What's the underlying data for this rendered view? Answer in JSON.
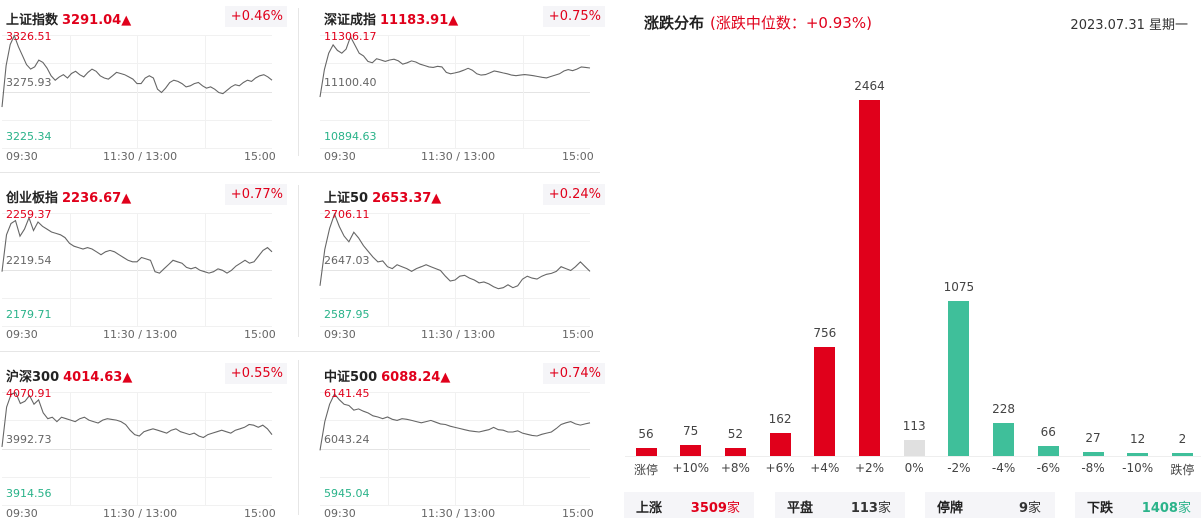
{
  "x_labels": {
    "start": "09:30",
    "mid": "11:30 / 13:00",
    "end": "15:00"
  },
  "indices": [
    {
      "name": "上证指数",
      "value": "3291.04▲",
      "change": "+0.46%",
      "high": "3326.51",
      "mid": "3275.93",
      "low": "3225.34",
      "series": [
        3262,
        3299,
        3318,
        3326,
        3316,
        3308,
        3300,
        3296,
        3298,
        3304,
        3302,
        3297,
        3290,
        3286,
        3289,
        3291,
        3288,
        3292,
        3294,
        3291,
        3289,
        3293,
        3296,
        3294,
        3290,
        3288,
        3287,
        3290,
        3293,
        3292,
        3291,
        3289,
        3287,
        3283,
        3283,
        3288,
        3290,
        3288,
        3278,
        3275,
        3279,
        3284,
        3286,
        3285,
        3283,
        3280,
        3281,
        3283,
        3284,
        3281,
        3279,
        3280,
        3278,
        3275,
        3274,
        3277,
        3280,
        3282,
        3281,
        3284,
        3286,
        3285,
        3288,
        3290,
        3291,
        3289,
        3286
      ]
    },
    {
      "name": "深证成指",
      "value": "11183.91▲",
      "change": "+0.75%",
      "high": "11306.17",
      "mid": "11100.40",
      "low": "10894.63",
      "series": [
        11080,
        11180,
        11240,
        11270,
        11250,
        11240,
        11255,
        11300,
        11270,
        11240,
        11230,
        11210,
        11205,
        11220,
        11215,
        11210,
        11215,
        11218,
        11212,
        11200,
        11205,
        11212,
        11208,
        11200,
        11195,
        11190,
        11188,
        11192,
        11190,
        11170,
        11165,
        11168,
        11172,
        11178,
        11185,
        11178,
        11165,
        11160,
        11162,
        11168,
        11175,
        11172,
        11168,
        11165,
        11160,
        11158,
        11160,
        11162,
        11160,
        11158,
        11155,
        11152,
        11150,
        11155,
        11160,
        11165,
        11175,
        11180,
        11176,
        11182,
        11190,
        11188,
        11186
      ]
    },
    {
      "name": "创业板指",
      "value": "2236.67▲",
      "change": "+0.77%",
      "high": "2259.37",
      "mid": "2219.54",
      "low": "2179.71",
      "series": [
        2218,
        2244,
        2252,
        2254,
        2243,
        2248,
        2256,
        2247,
        2253,
        2250,
        2248,
        2246,
        2245,
        2244,
        2242,
        2238,
        2236,
        2235,
        2234,
        2235,
        2234,
        2232,
        2230,
        2232,
        2233,
        2232,
        2230,
        2228,
        2226,
        2225,
        2225,
        2228,
        2227,
        2226,
        2218,
        2217,
        2220,
        2223,
        2226,
        2225,
        2224,
        2221,
        2220,
        2221,
        2219,
        2218,
        2217,
        2218,
        2220,
        2219,
        2217,
        2219,
        2222,
        2224,
        2226,
        2224,
        2225,
        2229,
        2233,
        2235,
        2232
      ]
    },
    {
      "name": "上证50",
      "value": "2653.37▲",
      "change": "+0.24%",
      "high": "2706.11",
      "mid": "2647.03",
      "low": "2587.95",
      "series": [
        2630,
        2668,
        2690,
        2705,
        2692,
        2682,
        2676,
        2686,
        2680,
        2672,
        2666,
        2660,
        2655,
        2656,
        2650,
        2648,
        2652,
        2650,
        2648,
        2645,
        2648,
        2650,
        2652,
        2650,
        2648,
        2646,
        2640,
        2635,
        2636,
        2640,
        2641,
        2638,
        2636,
        2633,
        2634,
        2632,
        2629,
        2627,
        2628,
        2631,
        2628,
        2630,
        2637,
        2640,
        2638,
        2637,
        2640,
        2642,
        2643,
        2645,
        2650,
        2648,
        2646,
        2650,
        2655,
        2650,
        2645
      ]
    },
    {
      "name": "沪深300",
      "value": "4014.63▲",
      "change": "+0.55%",
      "high": "4070.91",
      "mid": "3992.73",
      "low": "3914.56",
      "series": [
        3995,
        4050,
        4068,
        4070,
        4055,
        4058,
        4066,
        4054,
        4060,
        4042,
        4034,
        4036,
        4030,
        4036,
        4034,
        4032,
        4030,
        4034,
        4036,
        4032,
        4030,
        4028,
        4032,
        4034,
        4033,
        4032,
        4030,
        4026,
        4018,
        4012,
        4010,
        4016,
        4018,
        4020,
        4018,
        4016,
        4014,
        4018,
        4020,
        4016,
        4014,
        4012,
        4014,
        4010,
        4008,
        4012,
        4014,
        4016,
        4018,
        4016,
        4014,
        4018,
        4020,
        4022,
        4026,
        4025,
        4022,
        4025,
        4020,
        4012
      ]
    },
    {
      "name": "中证500",
      "value": "6088.24▲",
      "change": "+0.74%",
      "high": "6141.45",
      "mid": "6043.24",
      "low": "5945.04",
      "series": [
        6040,
        6090,
        6120,
        6138,
        6128,
        6120,
        6118,
        6110,
        6112,
        6108,
        6105,
        6100,
        6098,
        6095,
        6098,
        6094,
        6092,
        6095,
        6094,
        6092,
        6090,
        6088,
        6090,
        6092,
        6089,
        6086,
        6085,
        6082,
        6080,
        6078,
        6076,
        6074,
        6073,
        6072,
        6074,
        6076,
        6080,
        6076,
        6075,
        6072,
        6072,
        6074,
        6070,
        6068,
        6066,
        6065,
        6068,
        6070,
        6072,
        6078,
        6085,
        6088,
        6090,
        6086,
        6084,
        6086,
        6088
      ]
    }
  ],
  "distribution": {
    "title": "涨跌分布",
    "subtitle": "(涨跌中位数：+0.93%)",
    "date": "2023.07.31 星期一",
    "colors": {
      "up": "#e0001b",
      "flat": "#e0e0e0",
      "down": "#3fbf9a"
    }
  },
  "chart_data": {
    "type": "bar",
    "title": "涨跌分布",
    "categories": [
      "涨停",
      "+10%",
      "+8%",
      "+6%",
      "+4%",
      "+2%",
      "0%",
      "-2%",
      "-4%",
      "-6%",
      "-8%",
      "-10%",
      "跌停"
    ],
    "values": [
      56,
      75,
      52,
      162,
      756,
      2464,
      113,
      1075,
      228,
      66,
      27,
      12,
      2
    ],
    "kinds": [
      "up",
      "up",
      "up",
      "up",
      "up",
      "up",
      "flat",
      "down",
      "down",
      "down",
      "down",
      "down",
      "down"
    ],
    "ylim": [
      0,
      2464
    ]
  },
  "summary": [
    {
      "label": "上涨",
      "count": "3509",
      "unit": "家",
      "color": "#e0001b"
    },
    {
      "label": "平盘",
      "count": "113",
      "unit": "家",
      "color": "#333333"
    },
    {
      "label": "停牌",
      "count": "9",
      "unit": "家",
      "color": "#333333"
    },
    {
      "label": "下跌",
      "count": "1408",
      "unit": "家",
      "color": "#2bb38a"
    }
  ]
}
